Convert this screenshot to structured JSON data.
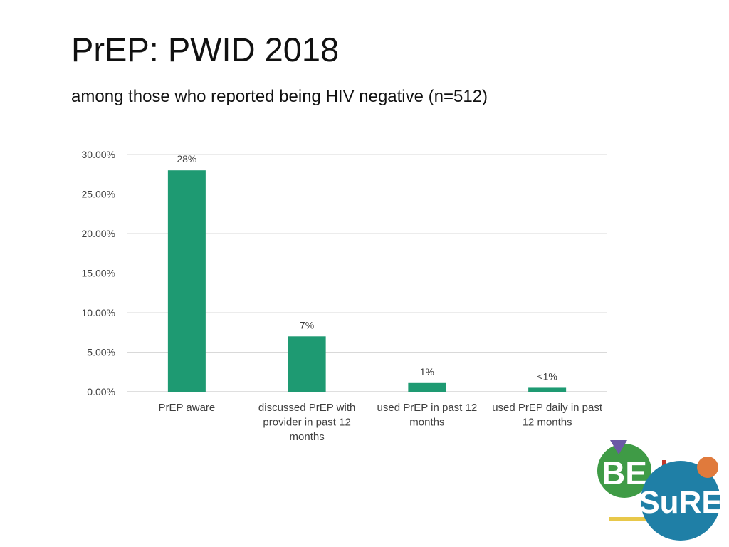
{
  "slide": {
    "title": "PrEP: PWID 2018",
    "subtitle": "among those who reported being HIV negative (n=512)"
  },
  "logo": {
    "text_be": "BE",
    "text_sure": "SuRE",
    "colors": {
      "green": "#3f9b46",
      "blue": "#1f7fa6",
      "orange": "#e07a3c",
      "purple": "#6b5aa6",
      "red": "#c0392b",
      "yellow": "#e8c84a"
    }
  },
  "chart_data": {
    "type": "bar",
    "categories": [
      [
        "PrEP aware"
      ],
      [
        "discussed PrEP with",
        "provider in past 12",
        "months"
      ],
      [
        "used PrEP in past 12",
        "months"
      ],
      [
        "used PrEP daily in past",
        "12 months"
      ]
    ],
    "values": [
      0.28,
      0.07,
      0.011,
      0.005
    ],
    "data_labels": [
      "28%",
      "7%",
      "1%",
      "<1%"
    ],
    "y_ticks": [
      0,
      0.05,
      0.1,
      0.15,
      0.2,
      0.25,
      0.3
    ],
    "y_tick_labels": [
      "0.00%",
      "5.00%",
      "10.00%",
      "15.00%",
      "20.00%",
      "25.00%",
      "30.00%"
    ],
    "ylim": [
      0,
      0.3
    ],
    "grid": true,
    "bar_color": "#1e9a72",
    "grid_color": "#d9d9d9"
  }
}
